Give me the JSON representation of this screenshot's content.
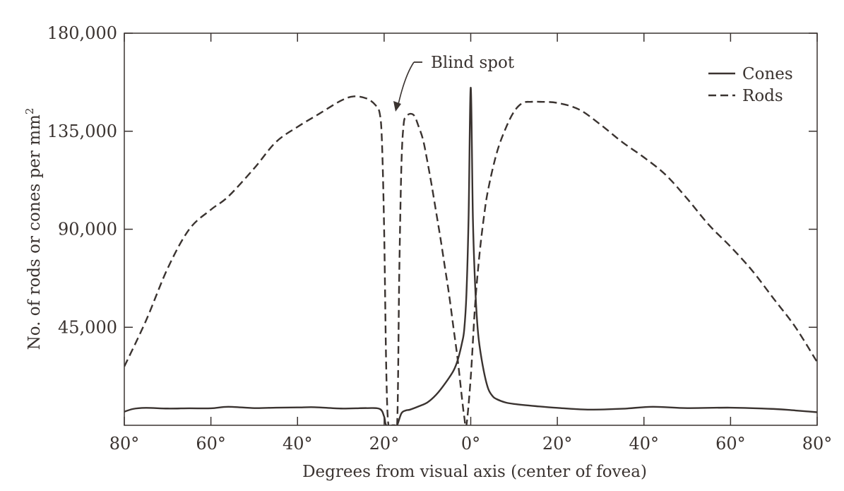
{
  "chart_data": {
    "type": "line",
    "title": "",
    "xlabel": "Degrees from visual axis (center of fovea)",
    "ylabel": "No. of rods or cones per mm",
    "ylabel_superscript": "2",
    "xlim": [
      -80,
      80
    ],
    "ylim": [
      0,
      180000
    ],
    "x_ticks": [
      -80,
      -60,
      -40,
      -20,
      0,
      20,
      40,
      60,
      80
    ],
    "x_tick_labels": [
      "80°",
      "60°",
      "40°",
      "20°",
      "0°",
      "20°",
      "40°",
      "60°",
      "80°"
    ],
    "y_ticks": [
      45000,
      90000,
      135000,
      180000
    ],
    "y_tick_labels": [
      "45,000",
      "90,000",
      "135,000",
      "180,000"
    ],
    "grid": false,
    "legend_position": "top-right",
    "line_color": "#3a3330",
    "annotations": [
      {
        "text": "Blind spot",
        "x": -17,
        "y": 146000
      }
    ],
    "series": [
      {
        "name": "Cones",
        "style": "solid",
        "x": [
          -81,
          -78,
          -75,
          -70,
          -65,
          -60,
          -56,
          -50,
          -45,
          -40,
          -36,
          -30,
          -24,
          -21,
          -20,
          -19.5,
          -18,
          -17.5,
          -17,
          -16,
          -15,
          -14,
          -12,
          -10,
          -8,
          -6,
          -4,
          -3,
          -2,
          -1.5,
          -1,
          -0.5,
          0,
          0.5,
          1,
          1.5,
          2,
          3,
          4,
          5,
          6,
          8,
          10,
          15,
          20,
          27,
          35,
          42,
          50,
          60,
          70,
          75,
          80
        ],
        "values": [
          5500,
          7500,
          8000,
          7700,
          7800,
          7800,
          8500,
          7900,
          8100,
          8200,
          8300,
          7700,
          7900,
          7500,
          4000,
          0,
          0,
          0,
          0,
          5500,
          6800,
          7200,
          8700,
          10500,
          14000,
          19000,
          25000,
          30000,
          38000,
          44000,
          60000,
          95000,
          155000,
          95000,
          65000,
          47000,
          37000,
          25000,
          17000,
          13500,
          12000,
          10500,
          9800,
          8800,
          8000,
          7200,
          7600,
          8500,
          7900,
          8100,
          7500,
          6800,
          6000
        ]
      },
      {
        "name": "Rods",
        "style": "dashed",
        "x": [
          -80,
          -75,
          -70,
          -65,
          -60,
          -56,
          -50,
          -45,
          -40,
          -35,
          -30,
          -27,
          -24,
          -22,
          -21,
          -20.5,
          -20,
          -19.5,
          -19,
          -18,
          -17,
          -16.5,
          -16,
          -15.5,
          -15,
          -14,
          -13,
          -12,
          -11,
          -10,
          -9,
          -8,
          -7,
          -6,
          -5,
          -4,
          -3,
          -2,
          -1.5,
          -1,
          0,
          1,
          2,
          3,
          4,
          6,
          8,
          10,
          12,
          14,
          16,
          20,
          25,
          30,
          35,
          40,
          45,
          50,
          55,
          60,
          65,
          70,
          75,
          80
        ],
        "values": [
          27000,
          48000,
          72000,
          90000,
          99000,
          105000,
          118000,
          130000,
          137000,
          143000,
          149000,
          151000,
          150000,
          147000,
          143000,
          130000,
          90000,
          25000,
          0,
          0,
          0,
          70000,
          120000,
          138000,
          141500,
          143000,
          142000,
          137000,
          131000,
          121000,
          110000,
          98000,
          86000,
          73000,
          60000,
          45000,
          30000,
          12000,
          4000,
          0,
          22000,
          55000,
          78000,
          95000,
          108000,
          125000,
          136000,
          144000,
          148000,
          148500,
          148500,
          148000,
          145000,
          138000,
          130000,
          123000,
          115000,
          104000,
          92000,
          82000,
          71000,
          58000,
          45000,
          29000
        ]
      }
    ]
  }
}
